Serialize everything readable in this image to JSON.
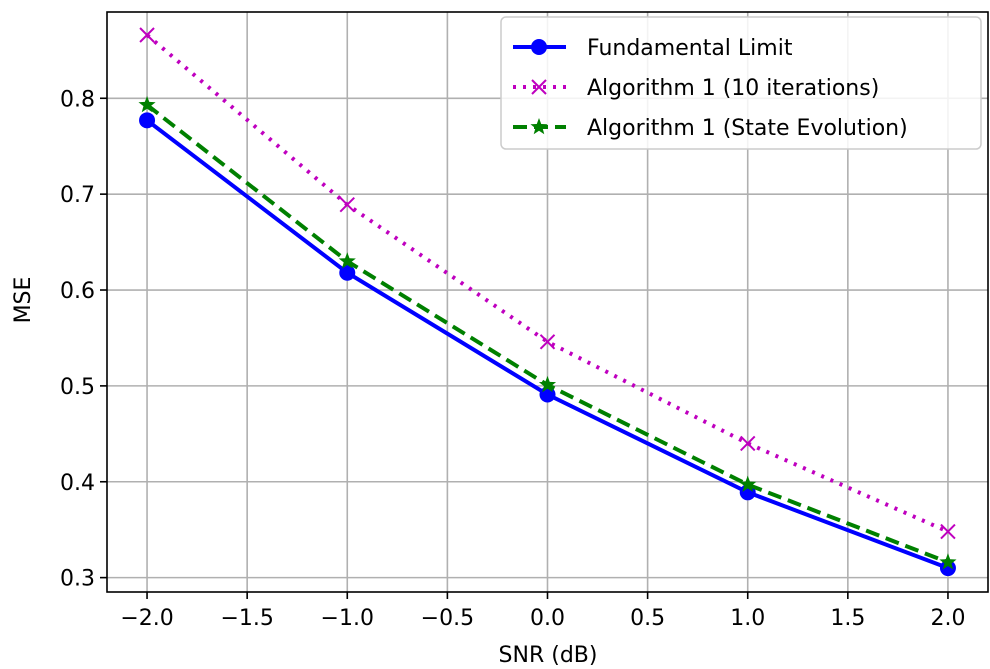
{
  "chart_data": {
    "type": "line",
    "title": "",
    "xlabel": "SNR (dB)",
    "ylabel": "MSE",
    "xlim": [
      -2.2,
      2.2
    ],
    "ylim": [
      0.285,
      0.89
    ],
    "grid": true,
    "legend_position": "top-right",
    "x_ticks": [
      -2.0,
      -1.5,
      -1.0,
      -0.5,
      0.0,
      0.5,
      1.0,
      1.5,
      2.0
    ],
    "x_tick_labels": [
      "−2.0",
      "−1.5",
      "−1.0",
      "−0.5",
      "0.0",
      "0.5",
      "1.0",
      "1.5",
      "2.0"
    ],
    "y_ticks": [
      0.3,
      0.4,
      0.5,
      0.6,
      0.7,
      0.8
    ],
    "y_tick_labels": [
      "0.3",
      "0.4",
      "0.5",
      "0.6",
      "0.7",
      "0.8"
    ],
    "x": [
      -2.0,
      -1.0,
      0.0,
      1.0,
      2.0
    ],
    "series": [
      {
        "name": "Fundamental Limit",
        "values": [
          0.777,
          0.618,
          0.491,
          0.389,
          0.31
        ],
        "color": "#0000ff",
        "style": "solid",
        "marker": "circle"
      },
      {
        "name": "Algorithm 1 (10 iterations)",
        "values": [
          0.866,
          0.689,
          0.546,
          0.44,
          0.348
        ],
        "color": "#bf00bf",
        "style": "dotted",
        "marker": "x"
      },
      {
        "name": "Algorithm 1 (State Evolution)",
        "values": [
          0.793,
          0.63,
          0.501,
          0.397,
          0.316
        ],
        "color": "#008000",
        "style": "dashed",
        "marker": "star"
      }
    ]
  }
}
